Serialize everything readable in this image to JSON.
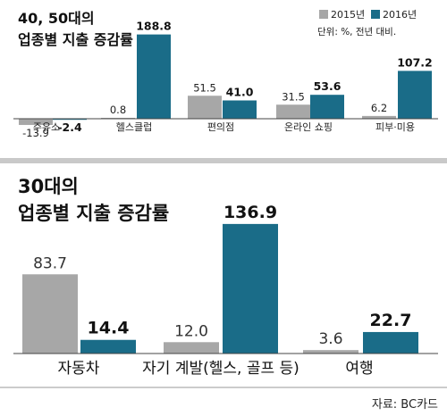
{
  "colors": {
    "y2015": "#a7a7a7",
    "y2016": "#1a6c88",
    "divider": "#c9c9c9"
  },
  "source": "자료: BC카드",
  "chart_data": [
    {
      "type": "bar",
      "title_lines": [
        "40, 50대의",
        "업종별 지출 증감률"
      ],
      "unit_note": "단위: %, 전년 대비.",
      "categories": [
        "주유소",
        "헬스클럽",
        "편의점",
        "온라인 쇼핑",
        "피부·미용"
      ],
      "series": [
        {
          "name": "2015년",
          "values": [
            -13.9,
            0.8,
            51.5,
            31.5,
            6.2
          ],
          "labels": [
            "-13.9",
            "0.8",
            "51.5",
            "31.5",
            "6.2"
          ]
        },
        {
          "name": "2016년",
          "values": [
            -2.4,
            188.8,
            41.0,
            53.6,
            107.2
          ],
          "labels": [
            "-2.4",
            "188.8",
            "41.0",
            "53.6",
            "107.2"
          ]
        }
      ],
      "legend_position": "top-right",
      "grid": false
    },
    {
      "type": "bar",
      "title_lines": [
        "30대의",
        "업종별 지출 증감률"
      ],
      "categories": [
        "자동차",
        "자기 계발(헬스, 골프 등)",
        "여행"
      ],
      "series": [
        {
          "name": "2015년",
          "values": [
            83.7,
            12.0,
            3.6
          ],
          "labels": [
            "83.7",
            "12.0",
            "3.6"
          ]
        },
        {
          "name": "2016년",
          "values": [
            14.4,
            136.9,
            22.7
          ],
          "labels": [
            "14.4",
            "136.9",
            "22.7"
          ]
        }
      ],
      "grid": false
    }
  ]
}
